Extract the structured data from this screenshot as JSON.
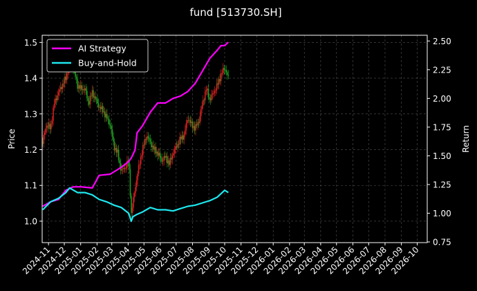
{
  "chart_data": {
    "type": "line",
    "title": "fund [513730.SH]",
    "ylabel_left": "Price",
    "ylabel_right": "Return",
    "left_ylim": [
      0.94,
      1.52
    ],
    "left_yticks": [
      "1.0",
      "1.1",
      "1.2",
      "1.3",
      "1.4",
      "1.5"
    ],
    "right_ylim": [
      0.744,
      2.55
    ],
    "right_yticks": [
      "0.75",
      "1.00",
      "1.25",
      "1.50",
      "1.75",
      "2.00",
      "2.25",
      "2.50"
    ],
    "x_range": [
      "2024-10-20",
      "2026-10-20"
    ],
    "x_ticks": [
      "2024-11",
      "2024-12",
      "2025-01",
      "2025-02",
      "2025-03",
      "2025-04",
      "2025-05",
      "2025-06",
      "2025-07",
      "2025-08",
      "2025-09",
      "2025-10",
      "2025-11",
      "2025-12",
      "2026-01",
      "2026-02",
      "2026-03",
      "2026-04",
      "2026-05",
      "2026-06",
      "2026-07",
      "2026-08",
      "2026-09",
      "2026-10"
    ],
    "grid": true,
    "legend_position": "top-left",
    "price_candles": {
      "axis": "left",
      "up_color": "#d62020",
      "down_color": "#1f9a1f",
      "close_points": [
        [
          "2024-10-21",
          1.22
        ],
        [
          "2024-10-28",
          1.27
        ],
        [
          "2024-11-05",
          1.26
        ],
        [
          "2024-11-12",
          1.33
        ],
        [
          "2024-11-20",
          1.36
        ],
        [
          "2024-11-27",
          1.38
        ],
        [
          "2024-12-04",
          1.4
        ],
        [
          "2024-12-11",
          1.44
        ],
        [
          "2024-12-18",
          1.43
        ],
        [
          "2024-12-26",
          1.38
        ],
        [
          "2025-01-02",
          1.37
        ],
        [
          "2025-01-09",
          1.37
        ],
        [
          "2025-01-16",
          1.33
        ],
        [
          "2025-01-23",
          1.36
        ],
        [
          "2025-02-05",
          1.32
        ],
        [
          "2025-02-12",
          1.31
        ],
        [
          "2025-02-19",
          1.29
        ],
        [
          "2025-02-26",
          1.27
        ],
        [
          "2025-03-05",
          1.21
        ],
        [
          "2025-03-12",
          1.19
        ],
        [
          "2025-03-19",
          1.14
        ],
        [
          "2025-03-26",
          1.15
        ],
        [
          "2025-04-02",
          1.17
        ],
        [
          "2025-04-07",
          1.02
        ],
        [
          "2025-04-14",
          1.09
        ],
        [
          "2025-04-21",
          1.15
        ],
        [
          "2025-04-28",
          1.2
        ],
        [
          "2025-05-06",
          1.24
        ],
        [
          "2025-05-13",
          1.22
        ],
        [
          "2025-05-20",
          1.2
        ],
        [
          "2025-05-27",
          1.19
        ],
        [
          "2025-06-04",
          1.17
        ],
        [
          "2025-06-11",
          1.18
        ],
        [
          "2025-06-18",
          1.16
        ],
        [
          "2025-06-25",
          1.19
        ],
        [
          "2025-07-02",
          1.21
        ],
        [
          "2025-07-09",
          1.23
        ],
        [
          "2025-07-16",
          1.24
        ],
        [
          "2025-07-23",
          1.29
        ],
        [
          "2025-07-30",
          1.27
        ],
        [
          "2025-08-06",
          1.26
        ],
        [
          "2025-08-13",
          1.28
        ],
        [
          "2025-08-20",
          1.33
        ],
        [
          "2025-08-27",
          1.37
        ],
        [
          "2025-09-03",
          1.34
        ],
        [
          "2025-09-10",
          1.36
        ],
        [
          "2025-09-17",
          1.38
        ],
        [
          "2025-09-24",
          1.41
        ],
        [
          "2025-10-01",
          1.43
        ],
        [
          "2025-10-08",
          1.4
        ]
      ]
    },
    "series": [
      {
        "name": "AI Strategy",
        "axis": "right",
        "color": "#ff00ff",
        "points": [
          [
            "2024-10-21",
            1.06
          ],
          [
            "2024-11-05",
            1.1
          ],
          [
            "2024-11-20",
            1.12
          ],
          [
            "2024-12-04",
            1.2
          ],
          [
            "2024-12-18",
            1.23
          ],
          [
            "2025-01-02",
            1.23
          ],
          [
            "2025-01-23",
            1.22
          ],
          [
            "2025-02-05",
            1.33
          ],
          [
            "2025-02-26",
            1.34
          ],
          [
            "2025-03-19",
            1.4
          ],
          [
            "2025-04-02",
            1.45
          ],
          [
            "2025-04-07",
            1.48
          ],
          [
            "2025-04-14",
            1.55
          ],
          [
            "2025-04-18",
            1.7
          ],
          [
            "2025-04-28",
            1.76
          ],
          [
            "2025-05-13",
            1.88
          ],
          [
            "2025-05-27",
            1.96
          ],
          [
            "2025-06-11",
            1.96
          ],
          [
            "2025-06-25",
            2.0
          ],
          [
            "2025-07-09",
            2.02
          ],
          [
            "2025-07-23",
            2.06
          ],
          [
            "2025-08-06",
            2.13
          ],
          [
            "2025-08-20",
            2.24
          ],
          [
            "2025-09-03",
            2.35
          ],
          [
            "2025-09-17",
            2.42
          ],
          [
            "2025-09-24",
            2.46
          ],
          [
            "2025-10-01",
            2.46
          ],
          [
            "2025-10-08",
            2.49
          ]
        ]
      },
      {
        "name": "Buy-and-Hold",
        "axis": "right",
        "color": "#1ee8f0",
        "points": [
          [
            "2024-10-21",
            1.03
          ],
          [
            "2024-11-05",
            1.1
          ],
          [
            "2024-11-20",
            1.13
          ],
          [
            "2024-12-04",
            1.18
          ],
          [
            "2024-12-11",
            1.22
          ],
          [
            "2024-12-26",
            1.18
          ],
          [
            "2025-01-09",
            1.18
          ],
          [
            "2025-01-23",
            1.16
          ],
          [
            "2025-02-05",
            1.12
          ],
          [
            "2025-02-19",
            1.1
          ],
          [
            "2025-03-05",
            1.07
          ],
          [
            "2025-03-19",
            1.05
          ],
          [
            "2025-04-02",
            1.0
          ],
          [
            "2025-04-07",
            0.93
          ],
          [
            "2025-04-10",
            0.97
          ],
          [
            "2025-04-18",
            0.99
          ],
          [
            "2025-04-28",
            1.01
          ],
          [
            "2025-05-13",
            1.05
          ],
          [
            "2025-05-27",
            1.03
          ],
          [
            "2025-06-11",
            1.03
          ],
          [
            "2025-06-25",
            1.02
          ],
          [
            "2025-07-09",
            1.04
          ],
          [
            "2025-07-23",
            1.06
          ],
          [
            "2025-08-06",
            1.07
          ],
          [
            "2025-08-20",
            1.09
          ],
          [
            "2025-09-03",
            1.11
          ],
          [
            "2025-09-17",
            1.14
          ],
          [
            "2025-10-01",
            1.2
          ],
          [
            "2025-10-08",
            1.18
          ]
        ]
      }
    ]
  }
}
